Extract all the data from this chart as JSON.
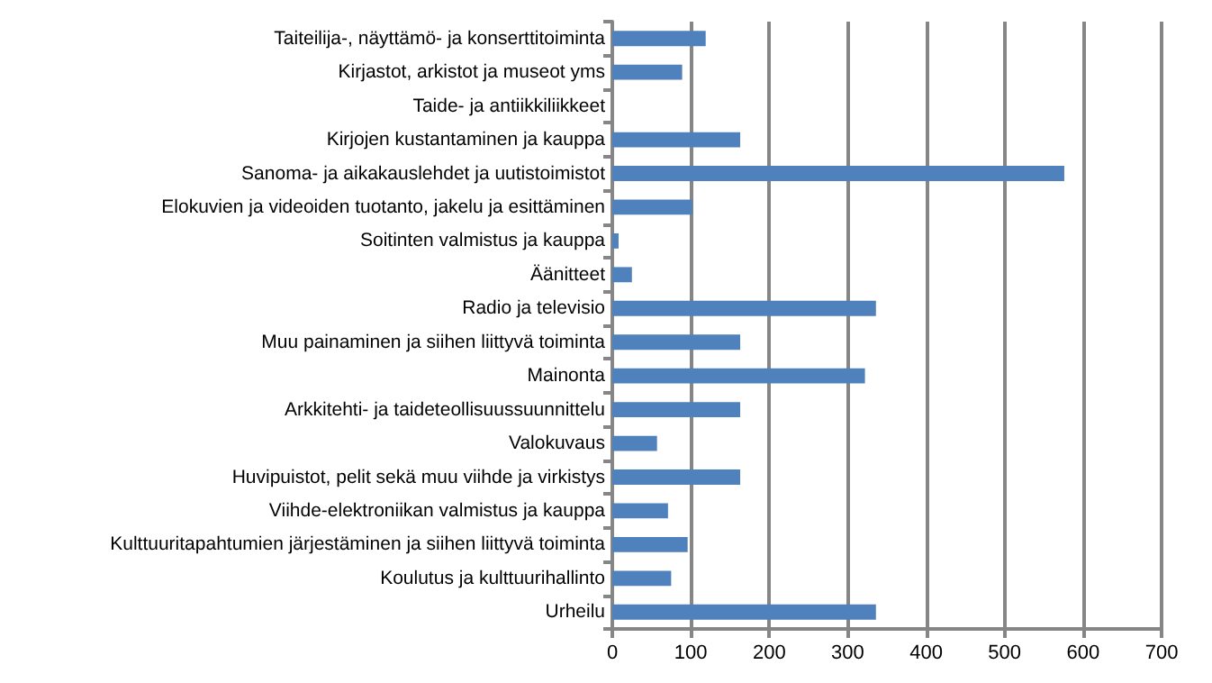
{
  "chart_data": {
    "type": "bar",
    "orientation": "horizontal",
    "categories": [
      "Taiteilija-, näyttämö- ja konserttitoiminta",
      "Kirjastot, arkistot ja museot yms",
      "Taide- ja antiikkiliikkeet",
      "Kirjojen kustantaminen ja kauppa",
      "Sanoma- ja aikakauslehdet ja uutistoimistot",
      "Elokuvien ja videoiden tuotanto, jakelu ja esittäminen",
      "Soitinten valmistus ja kauppa",
      "Äänitteet",
      "Radio ja televisio",
      "Muu painaminen ja siihen liittyvä toiminta",
      "Mainonta",
      "Arkkitehti- ja taideteollisuussuunnittelu",
      "Valokuvaus",
      "Huvipuistot, pelit sekä muu viihde ja virkistys",
      "Viihde-elektroniikan valmistus ja kauppa",
      "Kulttuuritapahtumien järjestäminen ja siihen liittyvä toiminta",
      "Koulutus ja kulttuurihallinto",
      "Urheilu"
    ],
    "values": [
      119,
      89,
      0,
      163,
      576,
      102,
      8,
      25,
      336,
      163,
      322,
      163,
      57,
      163,
      71,
      96,
      75,
      336
    ],
    "color": "#4f81bd",
    "xlim": [
      0,
      700
    ],
    "xticks": [
      0,
      100,
      200,
      300,
      400,
      500,
      600,
      700
    ],
    "grid": "x"
  }
}
